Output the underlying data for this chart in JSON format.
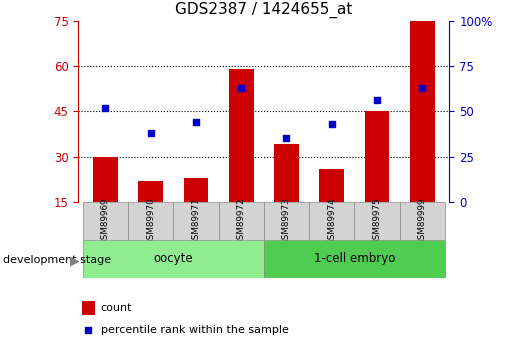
{
  "title": "GDS2387 / 1424655_at",
  "samples": [
    "GSM89969",
    "GSM89970",
    "GSM89971",
    "GSM89972",
    "GSM89973",
    "GSM89974",
    "GSM89975",
    "GSM89999"
  ],
  "count_values": [
    30,
    22,
    23,
    59,
    34,
    26,
    45,
    75
  ],
  "percentile_values": [
    52,
    38,
    44,
    63,
    35,
    43,
    56,
    63
  ],
  "count_color": "#cc0000",
  "percentile_color": "#0000cc",
  "ylim_left": [
    15,
    75
  ],
  "ylim_right": [
    0,
    100
  ],
  "yticks_left": [
    15,
    30,
    45,
    60,
    75
  ],
  "yticks_right": [
    0,
    25,
    50,
    75,
    100
  ],
  "ytick_labels_right": [
    "0",
    "25",
    "50",
    "75",
    "100%"
  ],
  "groups": [
    {
      "label": "oocyte",
      "indices": [
        0,
        1,
        2,
        3
      ],
      "color": "#90ee90"
    },
    {
      "label": "1-cell embryo",
      "indices": [
        4,
        5,
        6,
        7
      ],
      "color": "#50cc50"
    }
  ],
  "xlabel_left": "development stage",
  "legend_count_label": "count",
  "legend_percentile_label": "percentile rank within the sample",
  "sample_box_color": "#d3d3d3"
}
